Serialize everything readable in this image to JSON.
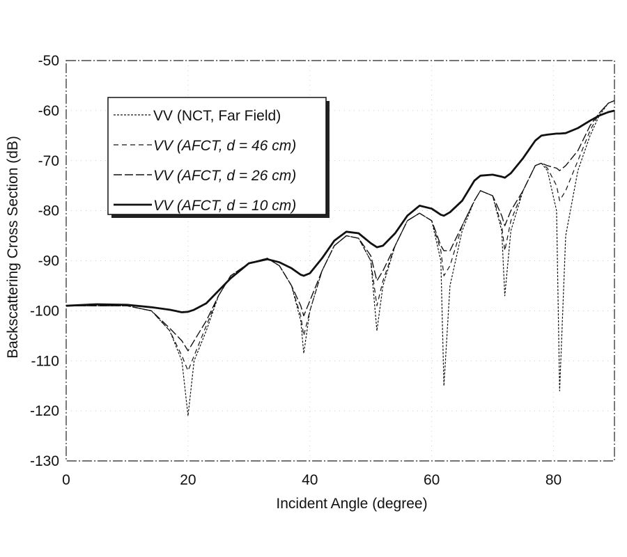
{
  "chart_data": {
    "type": "line",
    "title": "",
    "xlabel": "Incident Angle (degree)",
    "ylabel": "Backscattering Cross Section (dB)",
    "xlim": [
      0,
      90
    ],
    "ylim": [
      -130,
      -50
    ],
    "xticks": [
      0,
      20,
      40,
      60,
      80
    ],
    "yticks": [
      -50,
      -60,
      -70,
      -80,
      -90,
      -100,
      -110,
      -120,
      -130
    ],
    "grid": true,
    "legend_position": "top-left",
    "x": [
      0,
      5,
      10,
      14,
      17,
      19,
      20,
      21,
      23,
      25,
      27,
      30,
      33,
      35,
      37,
      38.5,
      39,
      40,
      42,
      44,
      46,
      48,
      50,
      51,
      52,
      54,
      56,
      58,
      60,
      61.5,
      62,
      63,
      65,
      67,
      68,
      70,
      71.5,
      72,
      73,
      75,
      77,
      78,
      79,
      80.5,
      81,
      82,
      84,
      86,
      87.5,
      89,
      90
    ],
    "series": [
      {
        "name": "VV (NCT, Far Field)",
        "style": "dotted",
        "values": [
          -99,
          -99,
          -99,
          -100,
          -104,
          -110,
          -121,
          -110,
          -104,
          -97,
          -93,
          -90.5,
          -89.5,
          -91,
          -95,
          -102,
          -108.5,
          -100,
          -92,
          -87,
          -85,
          -85.5,
          -90,
          -104,
          -95,
          -87,
          -82,
          -80.5,
          -82,
          -90,
          -115,
          -95,
          -84,
          -78,
          -76,
          -77,
          -84,
          -97,
          -84,
          -76,
          -71,
          -70.5,
          -72,
          -80,
          -116,
          -85,
          -72,
          -65,
          -61,
          -58.5,
          -58
        ]
      },
      {
        "name": "VV (AFCT, d = 46 cm)",
        "style": "dashed",
        "values": [
          -99,
          -99,
          -99,
          -100,
          -104,
          -109,
          -112,
          -109,
          -103,
          -97,
          -93,
          -90.5,
          -89.5,
          -91,
          -95,
          -101,
          -105,
          -100,
          -92,
          -87,
          -85,
          -85.5,
          -90,
          -99,
          -94,
          -87,
          -82,
          -80.5,
          -82,
          -88,
          -93,
          -91,
          -83,
          -78,
          -76,
          -77,
          -83,
          -88,
          -82,
          -76,
          -71,
          -70.5,
          -71.5,
          -75,
          -78,
          -76,
          -70,
          -64,
          -60.5,
          -58.5,
          -58
        ]
      },
      {
        "name": "VV (AFCT, d = 26 cm)",
        "style": "long-dashed",
        "values": [
          -99,
          -99,
          -99,
          -100,
          -103.5,
          -106,
          -108,
          -106,
          -102,
          -97,
          -93,
          -90.5,
          -89.5,
          -91,
          -95,
          -99,
          -101,
          -98,
          -92,
          -87,
          -85,
          -85.5,
          -89,
          -94,
          -92,
          -87,
          -82,
          -80.5,
          -82,
          -87,
          -88,
          -88,
          -83,
          -78,
          -76,
          -77,
          -81,
          -83,
          -80,
          -76,
          -71,
          -70.5,
          -71,
          -71.5,
          -72,
          -71,
          -68,
          -63,
          -60.5,
          -58.5,
          -58
        ]
      },
      {
        "name": "VV (AFCT, d = 10 cm)",
        "style": "solid",
        "values": [
          -99,
          -98.7,
          -98.8,
          -99.3,
          -99.8,
          -100.3,
          -100.2,
          -99.8,
          -98.5,
          -96,
          -93.5,
          -90.5,
          -89.7,
          -90.3,
          -91.5,
          -92.8,
          -93,
          -92.5,
          -89.5,
          -86,
          -84.2,
          -84.5,
          -86.5,
          -87.3,
          -87,
          -84.5,
          -81,
          -79,
          -79.6,
          -80.8,
          -81,
          -80.3,
          -78,
          -74,
          -73,
          -72.8,
          -73.2,
          -73.4,
          -72.5,
          -69.5,
          -66,
          -65,
          -64.8,
          -64.6,
          -64.6,
          -64.5,
          -63.5,
          -62,
          -61,
          -60.3,
          -60
        ]
      }
    ]
  }
}
